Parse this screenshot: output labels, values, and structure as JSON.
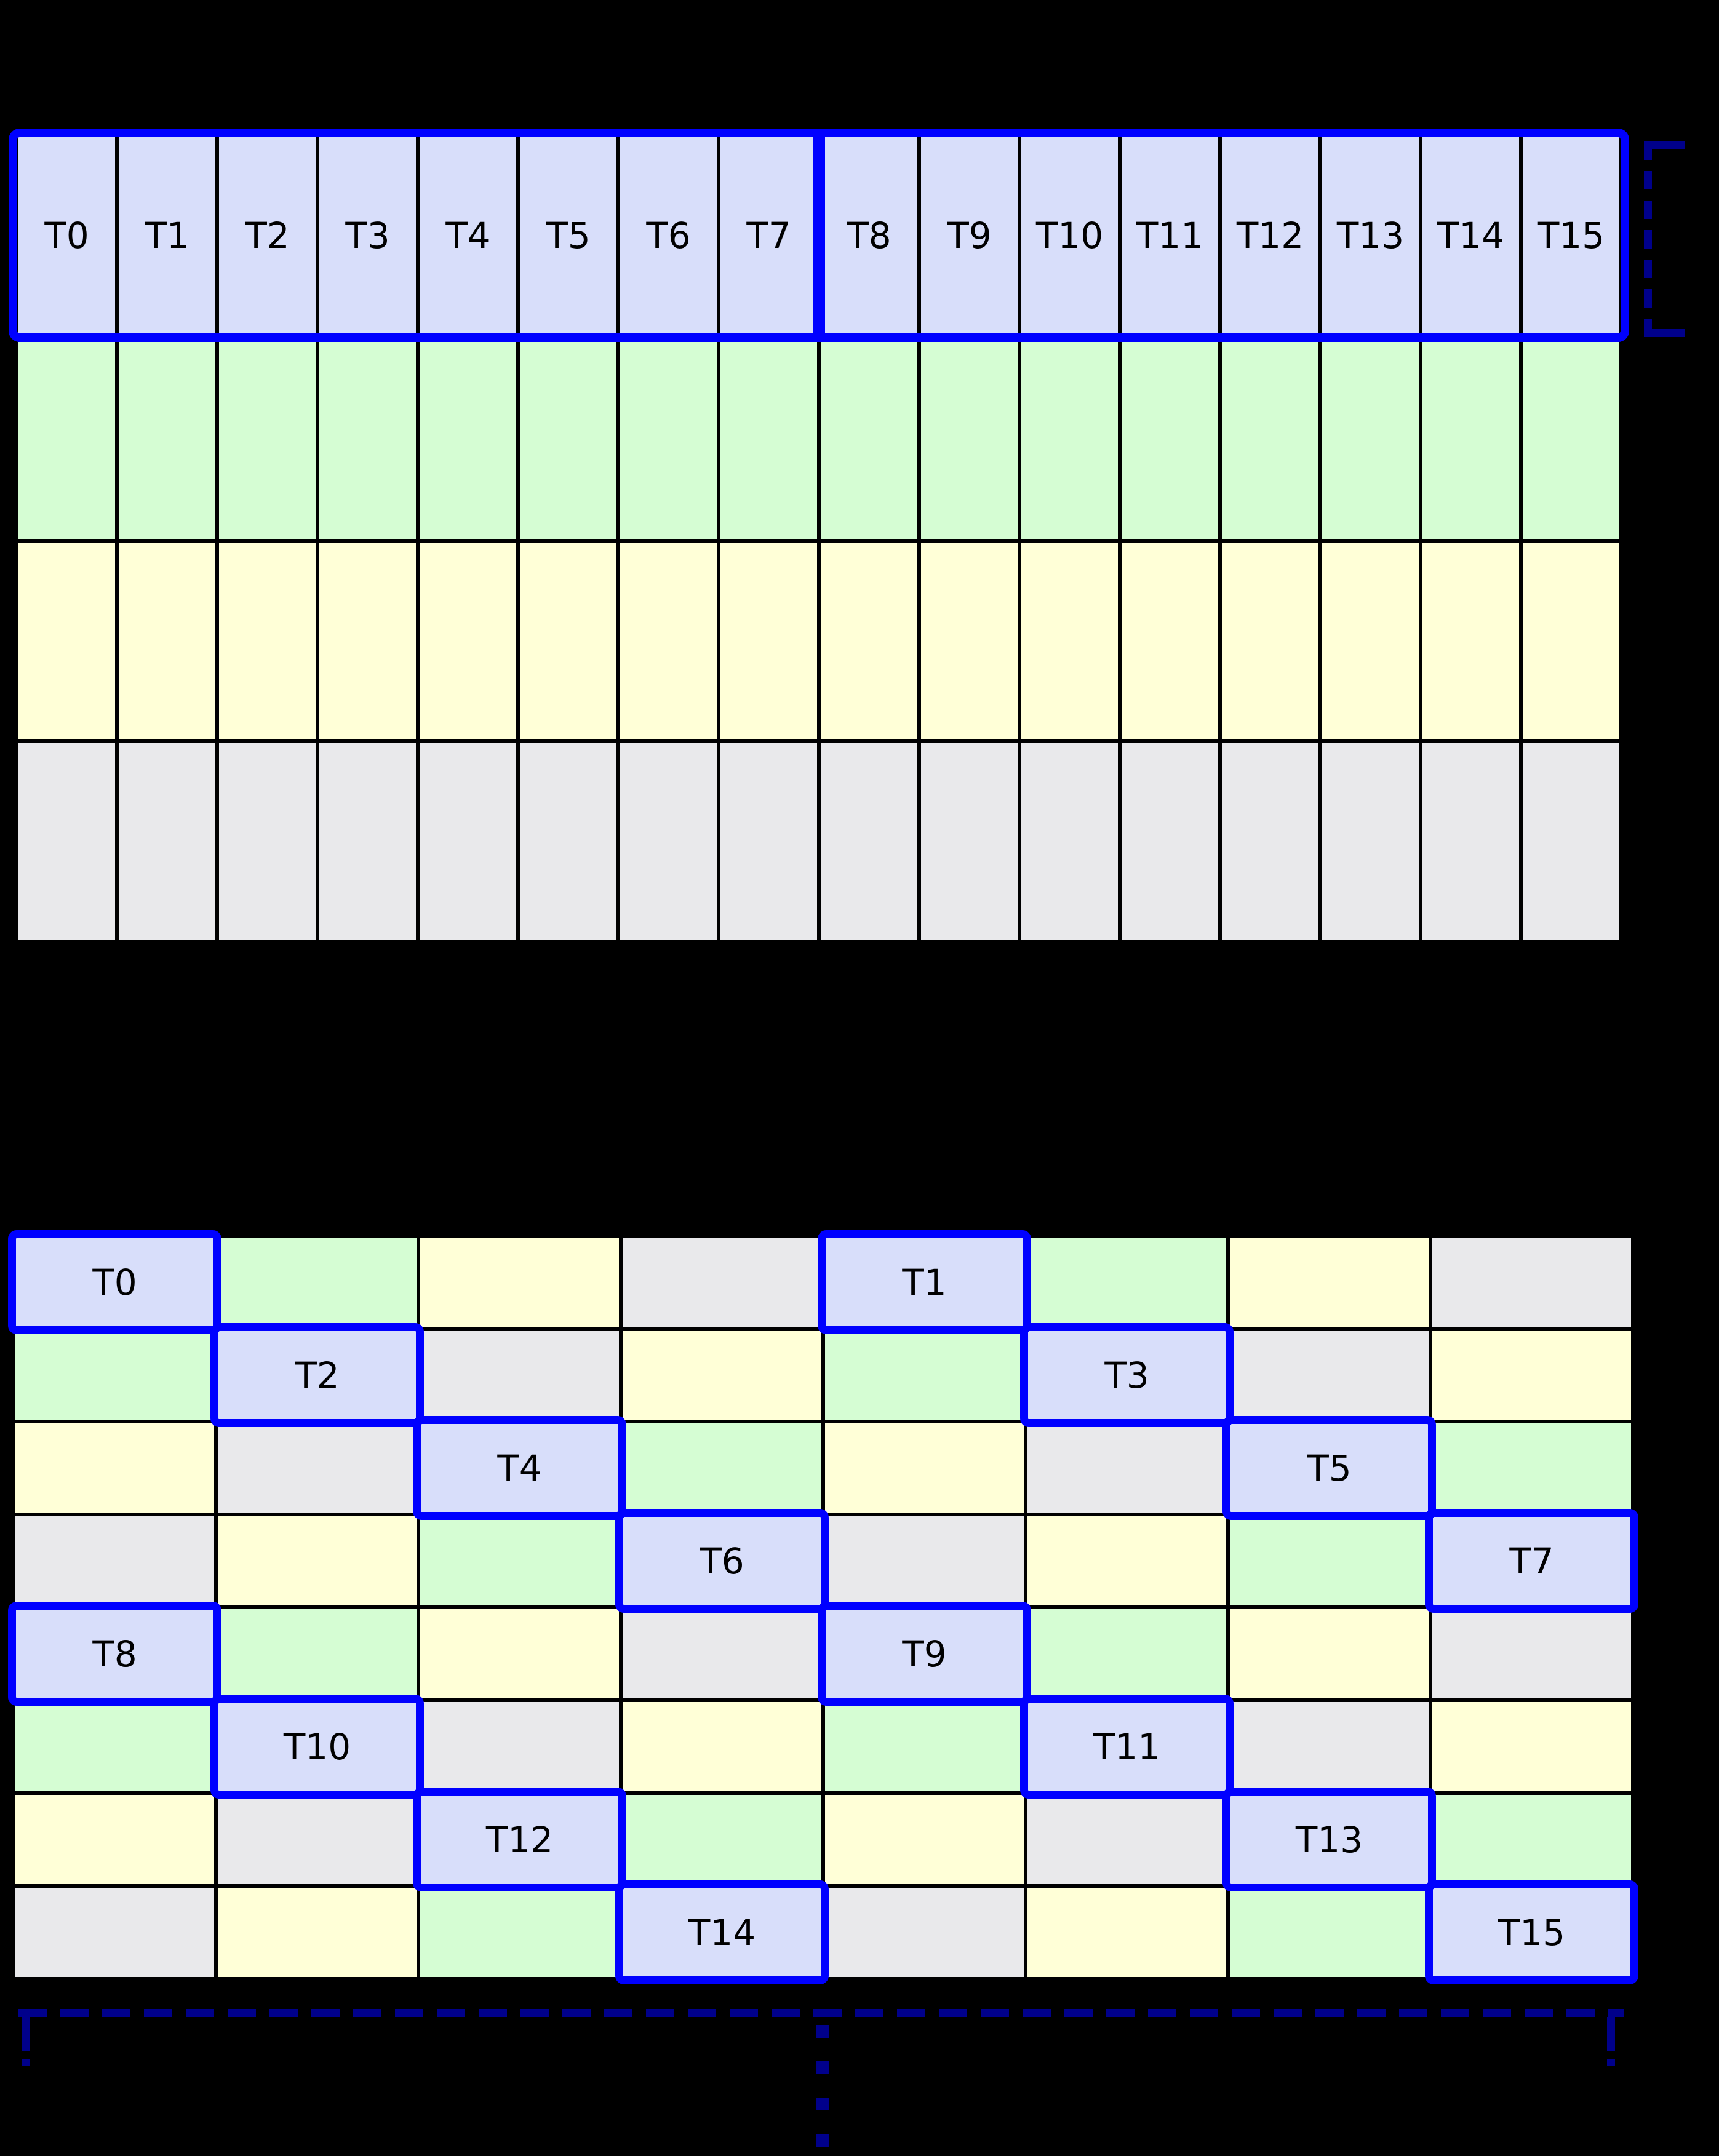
{
  "diagram": {
    "kind": "shared-memory bank access pattern",
    "thread_count": 16,
    "bank_count": 4
  },
  "colors": {
    "background": "#000000",
    "grid_line": "#000000",
    "label_text": "#000000",
    "thread_highlight_fill": "#d8defa",
    "bank_green": "#d5fdd3",
    "bank_yellow": "#ffffd7",
    "bank_gray": "#e9e9eb",
    "warp_outline_blue": "#0000ff",
    "bracket_navy": "#00008b"
  },
  "icons": {
    "row_bracket": "dashed-square-bracket",
    "phase_bracket": "dashed-range-bracket",
    "continuation": "vertical-ellipsis"
  },
  "top_table": {
    "columns": 16,
    "rows": [
      {
        "bank": 0,
        "labels": [
          "T0",
          "T1",
          "T2",
          "T3",
          "T4",
          "T5",
          "T6",
          "T7",
          "T8",
          "T9",
          "T10",
          "T11",
          "T12",
          "T13",
          "T14",
          "T15"
        ]
      },
      {
        "bank": 1,
        "labels": []
      },
      {
        "bank": 2,
        "labels": []
      },
      {
        "bank": 3,
        "labels": []
      }
    ],
    "warp_groups": [
      {
        "threads": [
          "T0",
          "T1",
          "T2",
          "T3",
          "T4",
          "T5",
          "T6",
          "T7"
        ]
      },
      {
        "threads": [
          "T8",
          "T9",
          "T10",
          "T11",
          "T12",
          "T13",
          "T14",
          "T15"
        ]
      }
    ]
  },
  "bottom_table": {
    "columns": 8,
    "rows": [
      [
        {
          "bank": 0,
          "label": "T0"
        },
        {
          "bank": 1
        },
        {
          "bank": 2
        },
        {
          "bank": 3
        },
        {
          "bank": 0,
          "label": "T1"
        },
        {
          "bank": 1
        },
        {
          "bank": 2
        },
        {
          "bank": 3
        }
      ],
      [
        {
          "bank": 1
        },
        {
          "bank": 0,
          "label": "T2"
        },
        {
          "bank": 3
        },
        {
          "bank": 2
        },
        {
          "bank": 1
        },
        {
          "bank": 0,
          "label": "T3"
        },
        {
          "bank": 3
        },
        {
          "bank": 2
        }
      ],
      [
        {
          "bank": 2
        },
        {
          "bank": 3
        },
        {
          "bank": 0,
          "label": "T4"
        },
        {
          "bank": 1
        },
        {
          "bank": 2
        },
        {
          "bank": 3
        },
        {
          "bank": 0,
          "label": "T5"
        },
        {
          "bank": 1
        }
      ],
      [
        {
          "bank": 3
        },
        {
          "bank": 2
        },
        {
          "bank": 1
        },
        {
          "bank": 0,
          "label": "T6"
        },
        {
          "bank": 3
        },
        {
          "bank": 2
        },
        {
          "bank": 1
        },
        {
          "bank": 0,
          "label": "T7"
        }
      ],
      [
        {
          "bank": 0,
          "label": "T8"
        },
        {
          "bank": 1
        },
        {
          "bank": 2
        },
        {
          "bank": 3
        },
        {
          "bank": 0,
          "label": "T9"
        },
        {
          "bank": 1
        },
        {
          "bank": 2
        },
        {
          "bank": 3
        }
      ],
      [
        {
          "bank": 1
        },
        {
          "bank": 0,
          "label": "T10"
        },
        {
          "bank": 3
        },
        {
          "bank": 2
        },
        {
          "bank": 1
        },
        {
          "bank": 0,
          "label": "T11"
        },
        {
          "bank": 3
        },
        {
          "bank": 2
        }
      ],
      [
        {
          "bank": 2
        },
        {
          "bank": 3
        },
        {
          "bank": 0,
          "label": "T12"
        },
        {
          "bank": 1
        },
        {
          "bank": 2
        },
        {
          "bank": 3
        },
        {
          "bank": 0,
          "label": "T13"
        },
        {
          "bank": 1
        }
      ],
      [
        {
          "bank": 3
        },
        {
          "bank": 2
        },
        {
          "bank": 1
        },
        {
          "bank": 0,
          "label": "T14"
        },
        {
          "bank": 3
        },
        {
          "bank": 2
        },
        {
          "bank": 1
        },
        {
          "bank": 0,
          "label": "T15"
        }
      ]
    ]
  }
}
